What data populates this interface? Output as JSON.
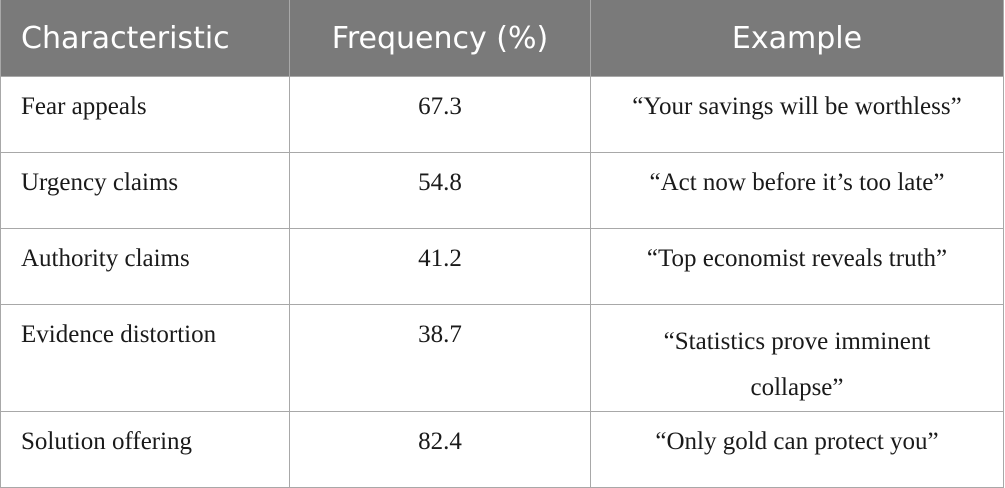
{
  "table": {
    "headers": [
      "Characteristic",
      "Frequency (%)",
      "Example"
    ],
    "rows": [
      {
        "characteristic": "Fear appeals",
        "frequency": "67.3",
        "example": "“Your savings will be worthless”"
      },
      {
        "characteristic": "Urgency claims",
        "frequency": "54.8",
        "example": "“Act now before it’s too late”"
      },
      {
        "characteristic": "Authority claims",
        "frequency": "41.2",
        "example": "“Top economist reveals truth”"
      },
      {
        "characteristic": "Evidence distortion",
        "frequency": "38.7",
        "example": "“Statistics prove imminent collapse”"
      },
      {
        "characteristic": "Solution offering",
        "frequency": "82.4",
        "example": "“Only gold can protect you”"
      }
    ]
  },
  "colors": {
    "header_bg": "#7a7a7a",
    "header_text": "#ffffff",
    "border": "#a8a8a8",
    "body_text": "#1a1a1a"
  }
}
